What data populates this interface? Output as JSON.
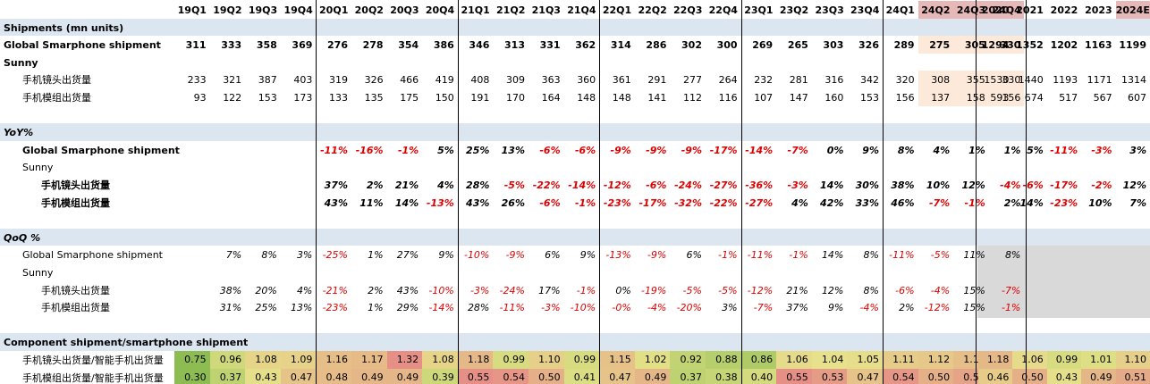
{
  "colors": {
    "section_bg": "#dce6f1",
    "highlight_header": "#e6b8b7",
    "highlight_cell": "#fde9d9",
    "grey_block": "#d9d9d9",
    "negative": "#e00000",
    "ratio_lo": "#8dbd52",
    "ratio_mid": "#e6e28a",
    "ratio_hi": "#e58f86"
  },
  "quarters": [
    "19Q1",
    "19Q2",
    "19Q3",
    "19Q4",
    "20Q1",
    "20Q2",
    "20Q3",
    "20Q4",
    "21Q1",
    "21Q2",
    "21Q3",
    "21Q4",
    "22Q1",
    "22Q2",
    "22Q3",
    "22Q4",
    "23Q1",
    "23Q2",
    "23Q3",
    "23Q4",
    "24Q1",
    "24Q2",
    "24Q3",
    "24Q4"
  ],
  "years": [
    "2020",
    "2021",
    "2022",
    "2023",
    "2024E"
  ],
  "highlight_quarters": [
    21,
    22,
    23
  ],
  "highlight_years": [
    4
  ],
  "sections": {
    "shipments": "Shipments (mn units)",
    "yoy": "YoY%",
    "qoq": "QoQ %",
    "component": "Component shipment/smartphone shipment"
  },
  "rows": {
    "shipments": [
      {
        "label": "Global Smarphone shipment",
        "bold": true,
        "indent": 0,
        "q": [
          "311",
          "333",
          "358",
          "369",
          "276",
          "278",
          "354",
          "386",
          "346",
          "313",
          "331",
          "362",
          "314",
          "286",
          "302",
          "300",
          "269",
          "265",
          "303",
          "326",
          "289",
          "275",
          "305",
          "330"
        ],
        "y": [
          "1294",
          "1352",
          "1202",
          "1163",
          "1199"
        ]
      },
      {
        "label": "Sunny",
        "bold": true,
        "indent": 0,
        "q": [],
        "y": []
      },
      {
        "label": "手机镜头出货量",
        "bold": false,
        "indent": 1,
        "q": [
          "233",
          "321",
          "387",
          "403",
          "319",
          "326",
          "466",
          "419",
          "408",
          "309",
          "363",
          "360",
          "361",
          "291",
          "277",
          "264",
          "232",
          "281",
          "316",
          "342",
          "320",
          "308",
          "355",
          "330"
        ],
        "y": [
          "1530",
          "1440",
          "1193",
          "1171",
          "1314"
        ]
      },
      {
        "label": "手机模组出货量",
        "bold": false,
        "indent": 1,
        "q": [
          "93",
          "122",
          "153",
          "173",
          "133",
          "135",
          "175",
          "150",
          "191",
          "170",
          "164",
          "148",
          "148",
          "141",
          "112",
          "116",
          "107",
          "147",
          "160",
          "153",
          "156",
          "137",
          "158",
          "156"
        ],
        "y": [
          "593",
          "674",
          "517",
          "567",
          "607"
        ]
      }
    ],
    "yoy": [
      {
        "label": "Global Smarphone shipment",
        "bold": true,
        "indent": 1,
        "q": [
          "",
          "",
          "",
          "",
          "-11%",
          "-16%",
          "-1%",
          "5%",
          "25%",
          "13%",
          "-6%",
          "-6%",
          "-9%",
          "-9%",
          "-9%",
          "-17%",
          "-14%",
          "-7%",
          "0%",
          "9%",
          "8%",
          "4%",
          "1%",
          "1%"
        ],
        "y": [
          "",
          "5%",
          "-11%",
          "-3%",
          "3%"
        ]
      },
      {
        "label": "Sunny",
        "bold": false,
        "indent": 1,
        "q": [],
        "y": []
      },
      {
        "label": "手机镜头出货量",
        "bold": true,
        "indent": 2,
        "q": [
          "",
          "",
          "",
          "",
          "37%",
          "2%",
          "21%",
          "4%",
          "28%",
          "-5%",
          "-22%",
          "-14%",
          "-12%",
          "-6%",
          "-24%",
          "-27%",
          "-36%",
          "-3%",
          "14%",
          "30%",
          "38%",
          "10%",
          "12%",
          "-4%"
        ],
        "y": [
          "",
          "-6%",
          "-17%",
          "-2%",
          "12%"
        ]
      },
      {
        "label": "手机模组出货量",
        "bold": true,
        "indent": 2,
        "q": [
          "",
          "",
          "",
          "",
          "43%",
          "11%",
          "14%",
          "-13%",
          "43%",
          "26%",
          "-6%",
          "-1%",
          "-23%",
          "-17%",
          "-32%",
          "-22%",
          "-27%",
          "4%",
          "42%",
          "33%",
          "46%",
          "-7%",
          "-1%",
          "2%"
        ],
        "y": [
          "",
          "14%",
          "-23%",
          "10%",
          "7%"
        ]
      }
    ],
    "qoq": [
      {
        "label": "Global Smarphone shipment",
        "indent": 1,
        "q": [
          "",
          "7%",
          "8%",
          "3%",
          "-25%",
          "1%",
          "27%",
          "9%",
          "-10%",
          "-9%",
          "6%",
          "9%",
          "-13%",
          "-9%",
          "6%",
          "-1%",
          "-11%",
          "-1%",
          "14%",
          "8%",
          "-11%",
          "-5%",
          "11%",
          "8%"
        ]
      },
      {
        "label": "Sunny",
        "indent": 1,
        "q": []
      },
      {
        "label": "手机镜头出货量",
        "indent": 2,
        "q": [
          "",
          "38%",
          "20%",
          "4%",
          "-21%",
          "2%",
          "43%",
          "-10%",
          "-3%",
          "-24%",
          "17%",
          "-1%",
          "0%",
          "-19%",
          "-5%",
          "-5%",
          "-12%",
          "21%",
          "12%",
          "8%",
          "-6%",
          "-4%",
          "15%",
          "-7%"
        ]
      },
      {
        "label": "手机模组出货量",
        "indent": 2,
        "q": [
          "",
          "31%",
          "25%",
          "13%",
          "-23%",
          "1%",
          "29%",
          "-14%",
          "28%",
          "-11%",
          "-3%",
          "-10%",
          "-0%",
          "-4%",
          "-20%",
          "3%",
          "-7%",
          "37%",
          "9%",
          "-4%",
          "2%",
          "-12%",
          "15%",
          "-1%"
        ]
      }
    ],
    "component": [
      {
        "label": "手机镜头出货量/智能手机出货量",
        "q": [
          "0.75",
          "0.96",
          "1.08",
          "1.09",
          "1.16",
          "1.17",
          "1.32",
          "1.08",
          "1.18",
          "0.99",
          "1.10",
          "0.99",
          "1.15",
          "1.02",
          "0.92",
          "0.88",
          "0.86",
          "1.06",
          "1.04",
          "1.05",
          "1.11",
          "1.12",
          "1.16",
          "1.00"
        ],
        "y": [
          "1.18",
          "1.06",
          "0.99",
          "1.01",
          "1.10"
        ]
      },
      {
        "label": "手机模组出货量/智能手机出货量",
        "q": [
          "0.30",
          "0.37",
          "0.43",
          "0.47",
          "0.48",
          "0.49",
          "0.49",
          "0.39",
          "0.55",
          "0.54",
          "0.50",
          "0.41",
          "0.47",
          "0.49",
          "0.37",
          "0.38",
          "0.40",
          "0.55",
          "0.53",
          "0.47",
          "0.54",
          "0.50",
          "0.52",
          "0.47"
        ],
        "y": [
          "0.46",
          "0.50",
          "0.43",
          "0.49",
          "0.51"
        ]
      }
    ]
  }
}
